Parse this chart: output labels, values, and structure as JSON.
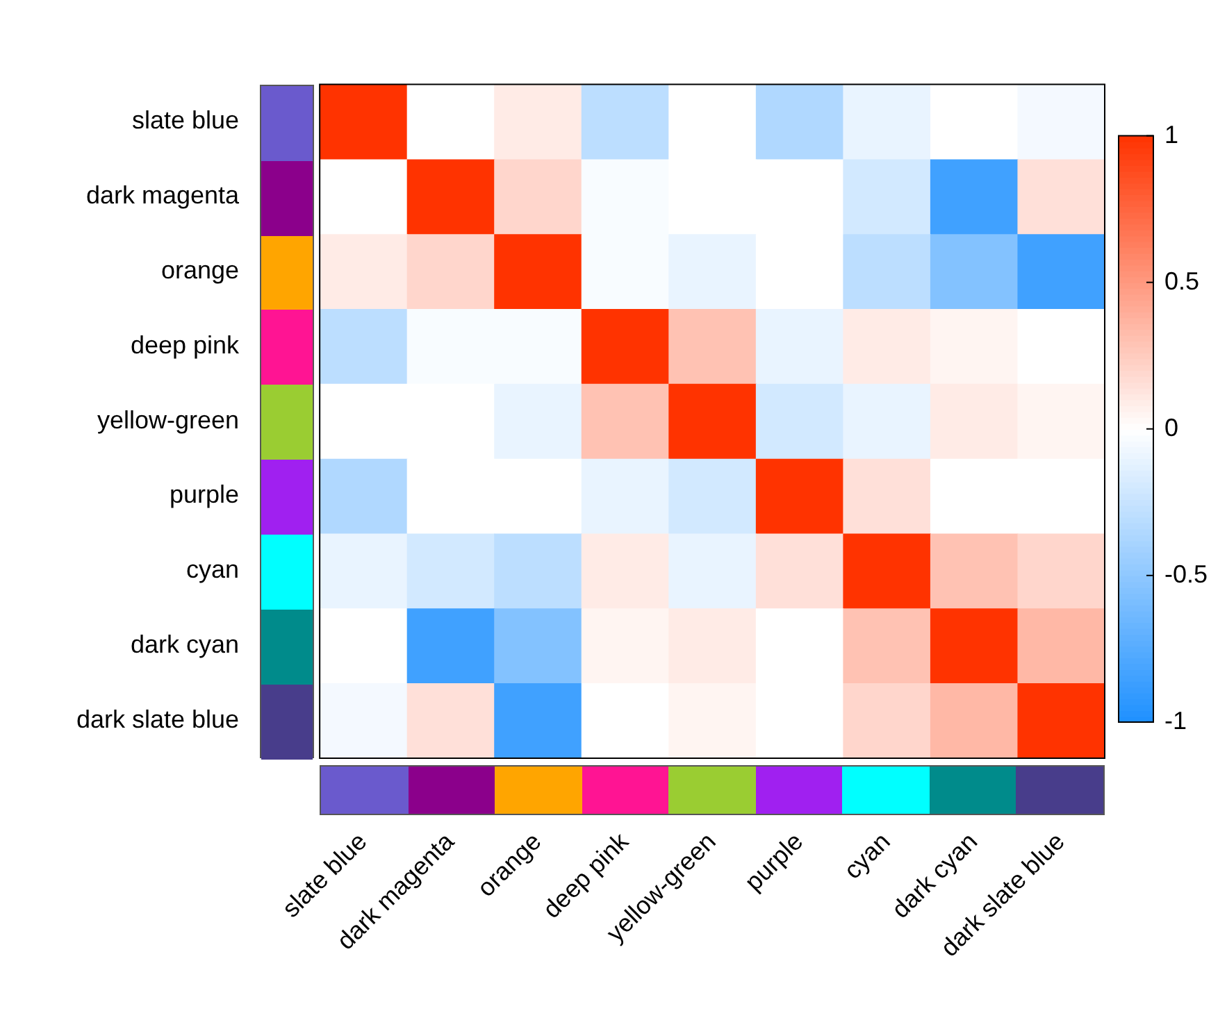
{
  "chart_data": {
    "type": "heatmap",
    "categories": [
      "slate blue",
      "dark magenta",
      "orange",
      "deep pink",
      "yellow-green",
      "purple",
      "cyan",
      "dark cyan",
      "dark slate blue"
    ],
    "y_categories": [
      "slate blue",
      "dark magenta",
      "orange",
      "deep pink",
      "yellow-green",
      "purple",
      "cyan",
      "dark cyan",
      "dark slate blue"
    ],
    "cells": [
      [
        1,
        0,
        0.1,
        -0.3,
        0,
        -0.35,
        -0.1,
        0,
        -0.05
      ],
      [
        0,
        1,
        0.2,
        -0.03,
        0,
        0,
        -0.2,
        -0.85,
        0.15
      ],
      [
        0.1,
        0.2,
        1,
        -0.03,
        -0.1,
        0,
        -0.3,
        -0.55,
        -0.85
      ],
      [
        -0.3,
        -0.03,
        -0.03,
        1,
        0.3,
        -0.1,
        0.1,
        0.05,
        0
      ],
      [
        0,
        0,
        -0.1,
        0.3,
        1,
        -0.2,
        -0.1,
        0.1,
        0.05
      ],
      [
        -0.35,
        0,
        0,
        -0.1,
        -0.2,
        1,
        0.15,
        0,
        0
      ],
      [
        -0.1,
        -0.2,
        -0.3,
        0.1,
        -0.1,
        0.15,
        1,
        0.3,
        0.2
      ],
      [
        0,
        -0.85,
        -0.55,
        0.05,
        0.1,
        0,
        0.3,
        1,
        0.35
      ],
      [
        -0.05,
        0.15,
        -0.85,
        0,
        0.05,
        0,
        0.2,
        0.35,
        1
      ]
    ],
    "clim": [
      -1,
      1
    ],
    "cticks": [
      1,
      0.5,
      0,
      {
        "value": -0.5,
        "label": "-0.5"
      },
      {
        "value": -1,
        "label": "-1"
      }
    ]
  }
}
